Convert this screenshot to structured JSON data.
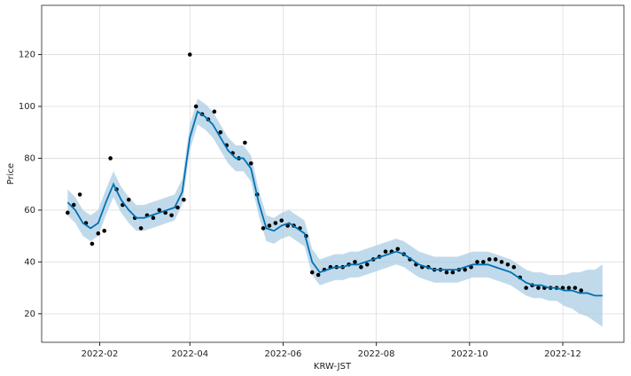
{
  "chart_data": {
    "type": "forecast",
    "x_label": "KRW-JST",
    "y_label": "Price",
    "xlim": [
      -7,
      374
    ],
    "xticks": [
      {
        "value": 31,
        "label": "2022-02"
      },
      {
        "value": 90,
        "label": "2022-04"
      },
      {
        "value": 151,
        "label": "2022-06"
      },
      {
        "value": 212,
        "label": "2022-08"
      },
      {
        "value": 273,
        "label": "2022-10"
      },
      {
        "value": 334,
        "label": "2022-12"
      }
    ],
    "ylim": [
      9,
      139
    ],
    "yticks": [
      20,
      40,
      60,
      80,
      100,
      120
    ],
    "grid": true,
    "observed": {
      "color": "#000000",
      "x": [
        10,
        14,
        18,
        22,
        26,
        30,
        34,
        38,
        42,
        46,
        50,
        54,
        58,
        62,
        66,
        70,
        74,
        78,
        82,
        86,
        90,
        94,
        98,
        102,
        106,
        110,
        114,
        118,
        122,
        126,
        130,
        134,
        138,
        142,
        146,
        150,
        154,
        158,
        162,
        166,
        170,
        174,
        178,
        182,
        186,
        190,
        194,
        198,
        202,
        206,
        210,
        214,
        218,
        222,
        226,
        230,
        234,
        238,
        242,
        246,
        250,
        254,
        258,
        262,
        266,
        270,
        274,
        278,
        282,
        286,
        290,
        294,
        298,
        302,
        306,
        310,
        314,
        318,
        322,
        326,
        330,
        334,
        338,
        342,
        346
      ],
      "values": [
        59,
        62,
        66,
        55,
        47,
        51,
        52,
        80,
        68,
        62,
        64,
        57,
        53,
        58,
        57,
        60,
        59,
        58,
        61,
        64,
        120,
        100,
        97,
        95,
        98,
        90,
        85,
        82,
        80,
        86,
        78,
        66,
        53,
        54,
        55,
        56,
        54,
        54,
        53,
        50,
        36,
        35,
        37,
        38,
        38,
        38,
        39,
        40,
        38,
        39,
        41,
        42,
        44,
        44,
        45,
        43,
        41,
        39,
        38,
        38,
        37,
        37,
        36,
        36,
        37,
        37,
        38,
        40,
        40,
        41,
        41,
        40,
        39,
        38,
        34,
        30,
        31,
        30,
        30,
        30,
        30,
        30,
        30,
        30,
        29
      ]
    },
    "forecast": {
      "color": "#0072b2",
      "band_color": "#a6cbe3",
      "x": [
        10,
        15,
        20,
        25,
        30,
        35,
        40,
        45,
        50,
        55,
        60,
        65,
        70,
        75,
        80,
        85,
        90,
        95,
        100,
        105,
        110,
        115,
        120,
        125,
        130,
        135,
        140,
        145,
        150,
        155,
        160,
        165,
        170,
        175,
        180,
        185,
        190,
        195,
        200,
        205,
        210,
        215,
        220,
        225,
        230,
        235,
        240,
        245,
        250,
        255,
        260,
        265,
        270,
        275,
        280,
        285,
        290,
        295,
        300,
        305,
        310,
        315,
        320,
        325,
        330,
        335,
        340,
        345,
        350,
        355,
        360
      ],
      "values": [
        63,
        60,
        55,
        53,
        55,
        63,
        70,
        64,
        60,
        57,
        57,
        58,
        59,
        60,
        61,
        67,
        88,
        98,
        96,
        93,
        88,
        83,
        80,
        80,
        76,
        63,
        53,
        52,
        54,
        55,
        53,
        51,
        40,
        36,
        37,
        38,
        38,
        39,
        39,
        40,
        41,
        42,
        43,
        44,
        43,
        41,
        39,
        38,
        37,
        37,
        37,
        37,
        38,
        39,
        39,
        39,
        38,
        37,
        36,
        34,
        32,
        31,
        31,
        30,
        30,
        29,
        29,
        28,
        28,
        27,
        27
      ],
      "lower": [
        58,
        55,
        50,
        48,
        50,
        58,
        65,
        59,
        55,
        52,
        52,
        53,
        54,
        55,
        56,
        62,
        83,
        93,
        91,
        88,
        83,
        78,
        75,
        75,
        71,
        58,
        48,
        47,
        49,
        50,
        48,
        46,
        35,
        31,
        32,
        33,
        33,
        34,
        34,
        35,
        36,
        37,
        38,
        39,
        38,
        36,
        34,
        33,
        32,
        32,
        32,
        32,
        33,
        34,
        34,
        34,
        33,
        32,
        31,
        29,
        27,
        26,
        26,
        25,
        25,
        23,
        22,
        20,
        19,
        17,
        15
      ],
      "upper": [
        68,
        65,
        60,
        58,
        60,
        68,
        75,
        69,
        65,
        62,
        62,
        63,
        64,
        65,
        66,
        72,
        93,
        103,
        101,
        98,
        93,
        88,
        85,
        85,
        81,
        68,
        58,
        57,
        59,
        60,
        58,
        56,
        45,
        41,
        42,
        43,
        43,
        44,
        44,
        45,
        46,
        47,
        48,
        49,
        48,
        46,
        44,
        43,
        42,
        42,
        42,
        42,
        43,
        44,
        44,
        44,
        43,
        42,
        41,
        39,
        37,
        36,
        36,
        35,
        35,
        35,
        36,
        36,
        37,
        37,
        39
      ]
    }
  }
}
